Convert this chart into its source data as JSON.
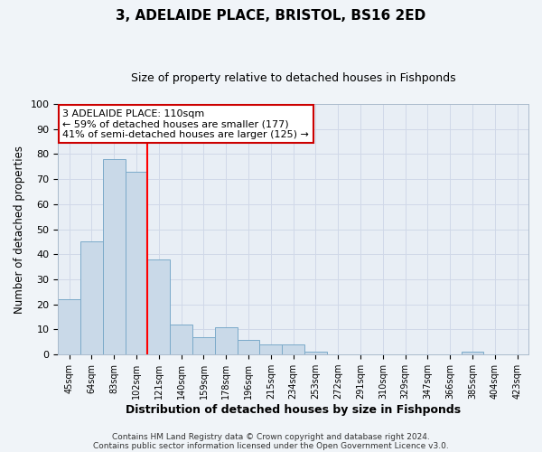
{
  "title": "3, ADELAIDE PLACE, BRISTOL, BS16 2ED",
  "subtitle": "Size of property relative to detached houses in Fishponds",
  "xlabel": "Distribution of detached houses by size in Fishponds",
  "ylabel": "Number of detached properties",
  "bar_labels": [
    "45sqm",
    "64sqm",
    "83sqm",
    "102sqm",
    "121sqm",
    "140sqm",
    "159sqm",
    "178sqm",
    "196sqm",
    "215sqm",
    "234sqm",
    "253sqm",
    "272sqm",
    "291sqm",
    "310sqm",
    "329sqm",
    "347sqm",
    "366sqm",
    "385sqm",
    "404sqm",
    "423sqm"
  ],
  "bar_values": [
    22,
    45,
    78,
    73,
    38,
    12,
    7,
    11,
    6,
    4,
    4,
    1,
    0,
    0,
    0,
    0,
    0,
    0,
    1,
    0,
    0
  ],
  "bar_color": "#c9d9e8",
  "bar_edge_color": "#7baac9",
  "grid_color": "#d0d8e8",
  "bg_color": "#e8eef5",
  "fig_bg_color": "#f0f4f8",
  "red_line_x": 3.5,
  "annotation_text": "3 ADELAIDE PLACE: 110sqm\n← 59% of detached houses are smaller (177)\n41% of semi-detached houses are larger (125) →",
  "annotation_box_color": "#ffffff",
  "annotation_box_edge": "#cc0000",
  "ylim": [
    0,
    100
  ],
  "title_fontsize": 11,
  "subtitle_fontsize": 9,
  "footer_line1": "Contains HM Land Registry data © Crown copyright and database right 2024.",
  "footer_line2": "Contains public sector information licensed under the Open Government Licence v3.0."
}
